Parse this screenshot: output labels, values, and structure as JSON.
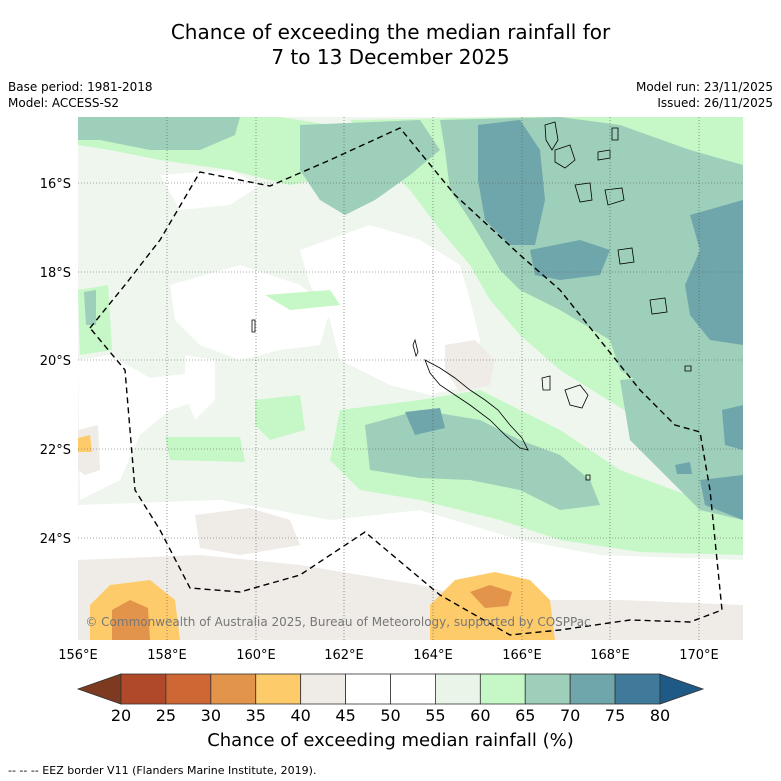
{
  "title": {
    "line1": "Chance of exceeding the median rainfall for",
    "line2": "7 to 13 December 2025"
  },
  "meta": {
    "base_period": "Base period: 1981-2018",
    "model": "Model: ACCESS-S2",
    "model_run": "Model run: 23/11/2025",
    "issued": "Issued: 26/11/2025"
  },
  "map": {
    "lat_labels": [
      "16°S",
      "18°S",
      "20°S",
      "22°S",
      "24°S"
    ],
    "lon_labels": [
      "156°E",
      "158°E",
      "160°E",
      "162°E",
      "164°E",
      "166°E",
      "168°E",
      "170°E"
    ],
    "copyright": "© Commonwealth of Australia 2025, Bureau of Meteorology, supported by COSPPac"
  },
  "colorbar": {
    "ticks": [
      "20",
      "25",
      "30",
      "35",
      "40",
      "45",
      "50",
      "55",
      "60",
      "65",
      "70",
      "75",
      "80"
    ],
    "colors": [
      "#7d3a20",
      "#b0492a",
      "#cf6734",
      "#e2944a",
      "#fecb6a",
      "#efebe6",
      "#ffffff",
      "#ffffff",
      "#e9f5e9",
      "#c6f7c6",
      "#9dcfba",
      "#6fa6ab",
      "#3f7a9a",
      "#1f5a86"
    ],
    "title": "Chance of exceeding median rainfall (%)"
  },
  "footnote": "--  --  -- EEZ border V11 (Flanders Marine Institute, 2019)."
}
